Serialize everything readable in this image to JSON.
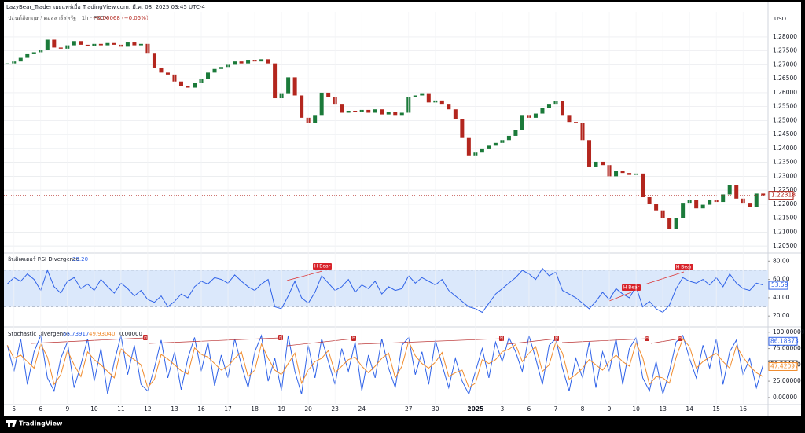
{
  "header": {
    "publisher": "LazyBear_Trader เผยแพร่เมื่อ TradingView.com, มี.ค. 08, 2025 03:45 UTC-4",
    "symbol": "ปอนด์อังกฤษ / ดอลลาร์สหรัฐ · 1h · FXCM",
    "change": "−0.00068 (−0.05%)",
    "currency": "USD"
  },
  "chart_data": [
    {
      "type": "candlestick",
      "name": "GBPUSD",
      "up_color": "#1b7a3a",
      "down_color": "#b3261e",
      "grid": true,
      "ylim": [
        1.2025,
        1.289
      ],
      "yticks": [
        {
          "value": 1.205,
          "label": "1.20500"
        },
        {
          "value": 1.21,
          "label": "1.21000"
        },
        {
          "value": 1.215,
          "label": "1.21500"
        },
        {
          "value": 1.22,
          "label": "1.22000"
        },
        {
          "value": 1.225,
          "label": "1.22500"
        },
        {
          "value": 1.23,
          "label": "1.23000"
        },
        {
          "value": 1.235,
          "label": "1.23500"
        },
        {
          "value": 1.24,
          "label": "1.24000"
        },
        {
          "value": 1.245,
          "label": "1.24500"
        },
        {
          "value": 1.25,
          "label": "1.25000"
        },
        {
          "value": 1.255,
          "label": "1.25500"
        },
        {
          "value": 1.26,
          "label": "1.26000"
        },
        {
          "value": 1.265,
          "label": "1.26500"
        },
        {
          "value": 1.27,
          "label": "1.27000"
        },
        {
          "value": 1.275,
          "label": "1.27500"
        },
        {
          "value": 1.28,
          "label": "1.28000"
        }
      ],
      "last_value": 1.22318,
      "categories": [
        null,
        "5",
        null,
        null,
        null,
        "6",
        null,
        null,
        null,
        "9",
        null,
        null,
        null,
        "10",
        null,
        null,
        null,
        "11",
        null,
        null,
        null,
        "12",
        null,
        null,
        null,
        "13",
        null,
        null,
        null,
        "16",
        null,
        null,
        null,
        "17",
        null,
        null,
        null,
        "18",
        null,
        null,
        null,
        "19",
        null,
        null,
        null,
        "20",
        null,
        null,
        null,
        "23",
        null,
        null,
        null,
        "24",
        null,
        null,
        null,
        null,
        null,
        null,
        "27",
        null,
        null,
        null,
        "30",
        null,
        null,
        null,
        null,
        null,
        "2025",
        null,
        null,
        null,
        "3",
        null,
        null,
        null,
        "6",
        null,
        null,
        null,
        "7",
        null,
        null,
        null,
        "8",
        null,
        null,
        null,
        "9",
        null,
        null,
        null,
        "10",
        null,
        null,
        null,
        "13",
        null,
        null,
        null,
        "14",
        null,
        null,
        null,
        "15",
        null,
        null,
        null,
        "16",
        null,
        null,
        null
      ],
      "values": [
        1.2705,
        1.2712,
        1.2725,
        1.2738,
        1.2745,
        1.2752,
        1.279,
        1.2762,
        1.2758,
        1.277,
        1.2785,
        1.2772,
        1.2768,
        1.2775,
        1.277,
        1.2778,
        1.2772,
        1.2765,
        1.278,
        1.277,
        1.2775,
        1.274,
        1.269,
        1.2672,
        1.2665,
        1.264,
        1.2625,
        1.2618,
        1.2635,
        1.265,
        1.2672,
        1.2685,
        1.2692,
        1.27,
        1.2712,
        1.2705,
        1.2718,
        1.2712,
        1.272,
        1.2705,
        1.258,
        1.2598,
        1.2655,
        1.259,
        1.251,
        1.2492,
        1.252,
        1.26,
        1.2585,
        1.256,
        1.2528,
        1.2535,
        1.253,
        1.2538,
        1.2528,
        1.254,
        1.2522,
        1.2532,
        1.252,
        1.2528,
        1.2585,
        1.259,
        1.2598,
        1.2565,
        1.2572,
        1.256,
        1.254,
        1.2505,
        1.244,
        1.2375,
        1.2385,
        1.24,
        1.241,
        1.242,
        1.243,
        1.2445,
        1.2465,
        1.252,
        1.251,
        1.2525,
        1.2545,
        1.256,
        1.257,
        1.252,
        1.2495,
        1.249,
        1.243,
        1.2335,
        1.2352,
        1.234,
        1.23,
        1.2318,
        1.2312,
        1.2305,
        1.231,
        1.2225,
        1.22,
        1.2178,
        1.215,
        1.211,
        1.215,
        1.2205,
        1.2215,
        1.2185,
        1.2198,
        1.2215,
        1.2208,
        1.2235,
        1.227,
        1.222,
        1.2205,
        1.219,
        1.2238,
        1.2232
      ]
    },
    {
      "type": "line",
      "title": "อินดิเคเตอร์ RSI Divergence",
      "legend_value": "39.20",
      "ylim": [
        9,
        88
      ],
      "band": [
        30,
        70
      ],
      "band_color": "#dbe8fb",
      "yticks": [
        {
          "value": 20,
          "label": "20.00"
        },
        {
          "value": 40,
          "label": "40.00"
        },
        {
          "value": 60,
          "label": "60.00"
        },
        {
          "value": 80,
          "label": "80.00"
        }
      ],
      "last_value": 53.59,
      "annotations": [
        "H Bear",
        "H Bear",
        "H Bear"
      ],
      "series": [
        {
          "name": "RSI",
          "color": "#2f62e8",
          "values": [
            55,
            62,
            58,
            66,
            60,
            48,
            70,
            52,
            45,
            58,
            62,
            50,
            55,
            48,
            60,
            52,
            45,
            56,
            50,
            42,
            48,
            38,
            35,
            42,
            30,
            36,
            44,
            40,
            52,
            58,
            55,
            62,
            60,
            56,
            65,
            58,
            52,
            48,
            55,
            60,
            30,
            28,
            42,
            58,
            40,
            34,
            46,
            64,
            56,
            48,
            52,
            60,
            46,
            54,
            50,
            58,
            44,
            52,
            48,
            50,
            64,
            56,
            62,
            58,
            54,
            60,
            48,
            42,
            36,
            30,
            28,
            24,
            34,
            44,
            50,
            56,
            62,
            70,
            66,
            60,
            72,
            64,
            68,
            48,
            44,
            40,
            34,
            28,
            36,
            46,
            38,
            50,
            44,
            40,
            52,
            30,
            36,
            28,
            24,
            32,
            50,
            62,
            58,
            56,
            60,
            54,
            62,
            52,
            66,
            56,
            50,
            48,
            56,
            54
          ]
        }
      ]
    },
    {
      "type": "line",
      "title": "Stochastic Divergence",
      "legend_values": [
        "56.73917",
        "49.93040",
        "0.00000"
      ],
      "ylim": [
        -11,
        107
      ],
      "yticks": [
        {
          "value": 0,
          "label": "0.00000"
        },
        {
          "value": 25,
          "label": "25.00000"
        },
        {
          "value": 50,
          "label": "50.00000"
        },
        {
          "value": 75,
          "label": "75.00000"
        },
        {
          "value": 100,
          "label": "100.00000"
        }
      ],
      "last_values": [
        86.18373,
        50.23404,
        47.42097
      ],
      "annotations": [
        "H",
        "H",
        "H",
        "H",
        "H",
        "H",
        "H"
      ],
      "series": [
        {
          "name": "%K",
          "color": "#2f62e8",
          "values": [
            80,
            40,
            90,
            20,
            70,
            95,
            30,
            10,
            60,
            85,
            15,
            50,
            90,
            25,
            75,
            5,
            55,
            95,
            35,
            80,
            20,
            10,
            45,
            88,
            30,
            70,
            12,
            60,
            92,
            40,
            85,
            18,
            65,
            30,
            90,
            50,
            15,
            70,
            95,
            25,
            60,
            10,
            95,
            40,
            5,
            80,
            30,
            90,
            55,
            20,
            75,
            40,
            85,
            10,
            65,
            30,
            90,
            45,
            15,
            80,
            92,
            35,
            70,
            20,
            88,
            50,
            15,
            60,
            25,
            5,
            40,
            75,
            30,
            85,
            55,
            92,
            70,
            40,
            95,
            60,
            20,
            80,
            90,
            45,
            10,
            60,
            30,
            85,
            15,
            70,
            40,
            90,
            20,
            75,
            92,
            30,
            10,
            55,
            5,
            40,
            85,
            95,
            60,
            30,
            80,
            45,
            90,
            20,
            70,
            88,
            35,
            60,
            15,
            50
          ]
        },
        {
          "name": "%D",
          "color": "#f08c2e",
          "values": [
            80,
            60,
            65,
            55,
            45,
            82,
            62,
            20,
            35,
            72,
            50,
            32,
            70,
            58,
            50,
            40,
            30,
            75,
            65,
            58,
            50,
            15,
            28,
            66,
            59,
            50,
            41,
            36,
            76,
            66,
            62,
            52,
            42,
            48,
            60,
            70,
            32,
            42,
            82,
            60,
            42,
            35,
            52,
            68,
            22,
            42,
            55,
            60,
            72,
            38,
            48,
            58,
            62,
            48,
            38,
            48,
            60,
            68,
            30,
            48,
            86,
            64,
            52,
            45,
            54,
            69,
            32,
            38,
            42,
            15,
            22,
            58,
            52,
            58,
            70,
            74,
            81,
            55,
            68,
            78,
            40,
            50,
            85,
            68,
            28,
            35,
            45,
            58,
            50,
            42,
            55,
            65,
            55,
            48,
            84,
            61,
            20,
            32,
            30,
            22,
            62,
            90,
            78,
            45,
            55,
            62,
            68,
            55,
            45,
            79,
            62,
            48,
            38,
            32
          ]
        }
      ]
    }
  ],
  "footer": {
    "brand": "TradingView"
  }
}
